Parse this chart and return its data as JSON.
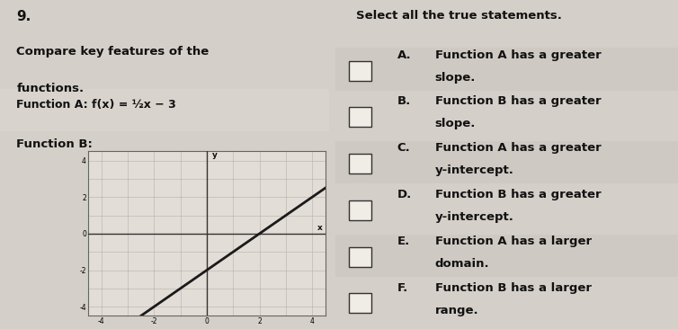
{
  "question_number": "9.",
  "left_title_line1": "Compare key features of the",
  "left_title_line2": "functions.",
  "func_a_text": "Function A: f(x) = ½x − 3",
  "func_b_label": "Function B:",
  "graph_xlim": [
    -4.5,
    4.5
  ],
  "graph_ylim": [
    -4.5,
    4.5
  ],
  "line_slope": 1,
  "line_intercept": -2,
  "right_title": "Select all the true statements.",
  "options": [
    {
      "letter": "A.",
      "line1": "Function A has a greater",
      "line2": "slope."
    },
    {
      "letter": "B.",
      "line1": "Function B has a greater",
      "line2": "slope."
    },
    {
      "letter": "C.",
      "line1": "Function A has a greater",
      "line2": "y-intercept."
    },
    {
      "letter": "D.",
      "line1": "Function B has a greater",
      "line2": "y-intercept."
    },
    {
      "letter": "E.",
      "line1": "Function A has a larger",
      "line2": "domain."
    },
    {
      "letter": "F.",
      "line1": "Function B has a larger",
      "line2": "range."
    }
  ],
  "bg_color": "#d4cfc8",
  "left_panel_bg": "#cbc6be",
  "right_panel_bg": "#d4cfc8",
  "graph_bg": "#e2ddd6",
  "graph_line_color": "#1a1a1a",
  "grid_color": "#aaa89f",
  "axis_color": "#333333",
  "text_color": "#111111",
  "divider_color": "#888880",
  "checkbox_edge": "#333333",
  "checkbox_face": "#f0ece6"
}
